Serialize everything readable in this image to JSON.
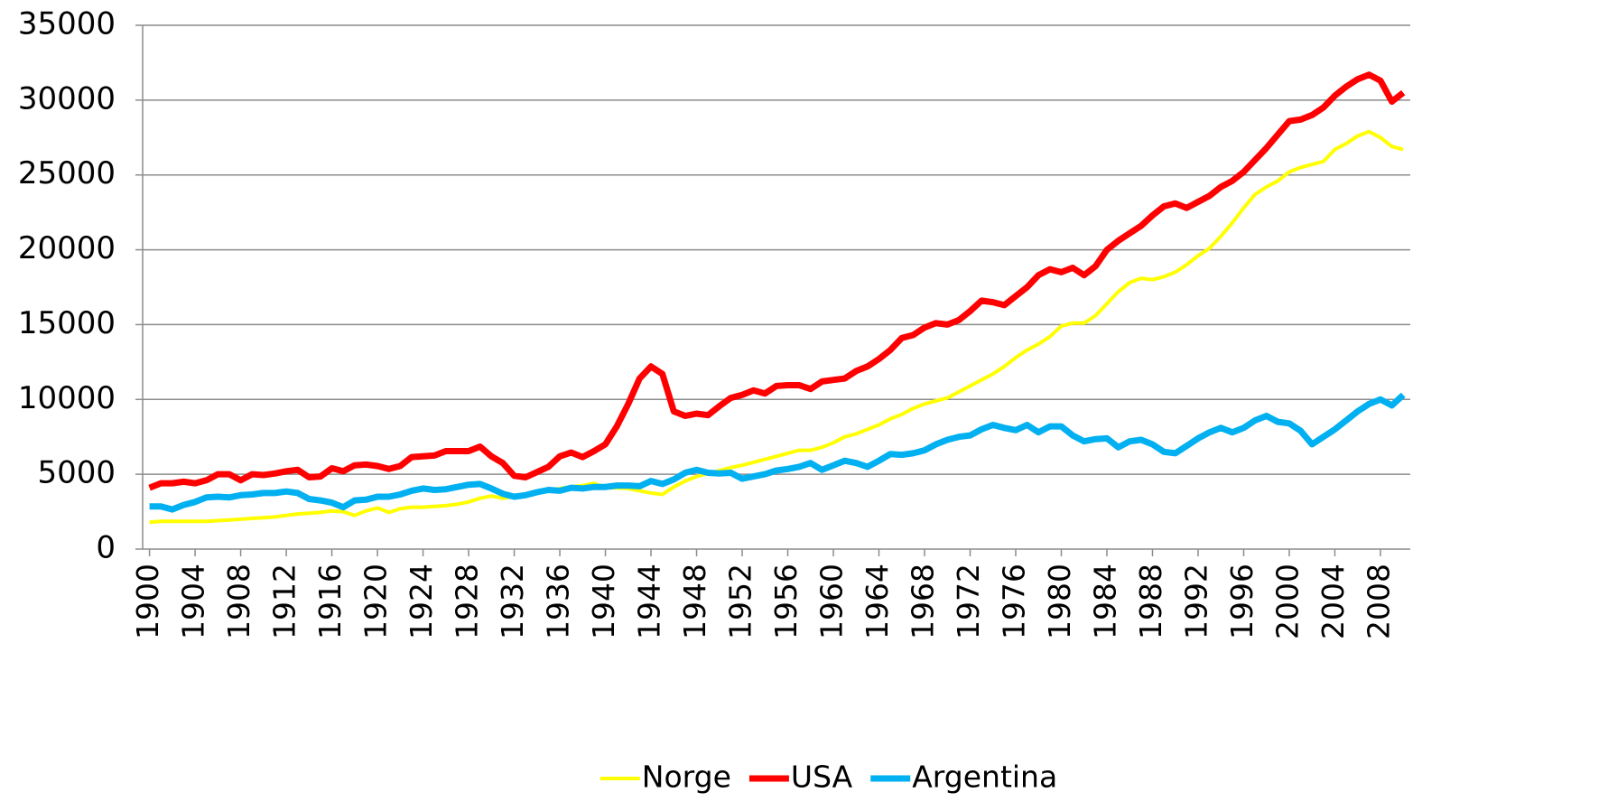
{
  "chart_data": {
    "type": "line",
    "x": [
      1900,
      1901,
      1902,
      1903,
      1904,
      1905,
      1906,
      1907,
      1908,
      1909,
      1910,
      1911,
      1912,
      1913,
      1914,
      1915,
      1916,
      1917,
      1918,
      1919,
      1920,
      1921,
      1922,
      1923,
      1924,
      1925,
      1926,
      1927,
      1928,
      1929,
      1930,
      1931,
      1932,
      1933,
      1934,
      1935,
      1936,
      1937,
      1938,
      1939,
      1940,
      1941,
      1942,
      1943,
      1944,
      1945,
      1946,
      1947,
      1948,
      1949,
      1950,
      1951,
      1952,
      1953,
      1954,
      1955,
      1956,
      1957,
      1958,
      1959,
      1960,
      1961,
      1962,
      1963,
      1964,
      1965,
      1966,
      1967,
      1968,
      1969,
      1970,
      1971,
      1972,
      1973,
      1974,
      1975,
      1976,
      1977,
      1978,
      1979,
      1980,
      1981,
      1982,
      1983,
      1984,
      1985,
      1986,
      1987,
      1988,
      1989,
      1990,
      1991,
      1992,
      1993,
      1994,
      1995,
      1996,
      1997,
      1998,
      1999,
      2000,
      2001,
      2002,
      2003,
      2004,
      2005,
      2006,
      2007,
      2008,
      2009,
      2010
    ],
    "series": [
      {
        "name": "Norge",
        "color": "#ffff00",
        "values": [
          1800,
          1850,
          1850,
          1850,
          1850,
          1850,
          1900,
          1950,
          2000,
          2050,
          2100,
          2150,
          2250,
          2350,
          2400,
          2450,
          2550,
          2500,
          2250,
          2550,
          2750,
          2450,
          2700,
          2800,
          2800,
          2850,
          2900,
          3000,
          3150,
          3400,
          3550,
          3400,
          3500,
          3600,
          3750,
          3900,
          4050,
          4150,
          4250,
          4400,
          4100,
          4100,
          4050,
          3900,
          3750,
          3650,
          4150,
          4550,
          4850,
          5050,
          5250,
          5450,
          5600,
          5800,
          6000,
          6200,
          6400,
          6600,
          6600,
          6800,
          7100,
          7500,
          7700,
          8000,
          8300,
          8700,
          9000,
          9400,
          9700,
          9900,
          10100,
          10500,
          10900,
          11300,
          11700,
          12200,
          12800,
          13300,
          13700,
          14200,
          14900,
          15100,
          15100,
          15600,
          16400,
          17200,
          17800,
          18100,
          18000,
          18200,
          18500,
          19000,
          19600,
          20100,
          20900,
          21800,
          22800,
          23700,
          24200,
          24600,
          25200,
          25500,
          25700,
          25900,
          26700,
          27100,
          27600,
          27900,
          27500,
          26900,
          26700
        ]
      },
      {
        "name": "USA",
        "color": "#ff0000",
        "values": [
          4100,
          4400,
          4400,
          4500,
          4400,
          4600,
          5000,
          5000,
          4600,
          5000,
          4950,
          5050,
          5200,
          5300,
          4800,
          4850,
          5400,
          5200,
          5600,
          5650,
          5550,
          5350,
          5550,
          6150,
          6200,
          6250,
          6550,
          6550,
          6550,
          6850,
          6200,
          5750,
          4900,
          4800,
          5150,
          5500,
          6200,
          6450,
          6150,
          6550,
          7000,
          8200,
          9700,
          11400,
          12200,
          11700,
          9200,
          8900,
          9050,
          8950,
          9550,
          10100,
          10300,
          10600,
          10400,
          10900,
          10950,
          10950,
          10700,
          11200,
          11300,
          11400,
          11900,
          12200,
          12700,
          13300,
          14100,
          14300,
          14800,
          15100,
          15000,
          15300,
          15900,
          16600,
          16500,
          16300,
          16900,
          17500,
          18300,
          18700,
          18500,
          18800,
          18300,
          18900,
          20000,
          20600,
          21100,
          21600,
          22300,
          22900,
          23100,
          22800,
          23200,
          23600,
          24200,
          24600,
          25200,
          26000,
          26800,
          27700,
          28600,
          28700,
          29000,
          29500,
          30300,
          30900,
          31400,
          31700,
          31300,
          29900,
          30500
        ]
      },
      {
        "name": "Argentina",
        "color": "#00b0f0",
        "values": [
          2850,
          2850,
          2650,
          2950,
          3150,
          3450,
          3500,
          3450,
          3600,
          3650,
          3750,
          3750,
          3850,
          3750,
          3350,
          3250,
          3100,
          2800,
          3250,
          3300,
          3500,
          3500,
          3650,
          3900,
          4050,
          3950,
          4000,
          4150,
          4300,
          4350,
          4050,
          3700,
          3500,
          3600,
          3800,
          3950,
          3900,
          4100,
          4050,
          4150,
          4150,
          4250,
          4250,
          4200,
          4550,
          4350,
          4650,
          5100,
          5300,
          5100,
          5050,
          5100,
          4700,
          4850,
          5000,
          5250,
          5350,
          5500,
          5750,
          5300,
          5600,
          5900,
          5750,
          5500,
          5900,
          6350,
          6300,
          6400,
          6600,
          7000,
          7300,
          7500,
          7600,
          8000,
          8300,
          8100,
          7950,
          8300,
          7800,
          8200,
          8200,
          7600,
          7200,
          7350,
          7400,
          6800,
          7200,
          7300,
          7000,
          6500,
          6400,
          6900,
          7400,
          7800,
          8100,
          7800,
          8100,
          8600,
          8900,
          8500,
          8400,
          7900,
          7000,
          7500,
          8000,
          8600,
          9200,
          9700,
          10000,
          9600,
          10300
        ]
      }
    ],
    "xlim": [
      1899.4,
      2010.3
    ],
    "xticks": [
      1900,
      1904,
      1908,
      1912,
      1916,
      1920,
      1924,
      1928,
      1932,
      1936,
      1940,
      1944,
      1948,
      1952,
      1956,
      1960,
      1964,
      1968,
      1972,
      1976,
      1980,
      1984,
      1988,
      1992,
      1996,
      2000,
      2004,
      2008
    ],
    "ylim": [
      0,
      35000
    ],
    "yticks": [
      0,
      5000,
      10000,
      15000,
      20000,
      25000,
      30000,
      35000
    ],
    "grid": true,
    "legend": "bottom"
  }
}
